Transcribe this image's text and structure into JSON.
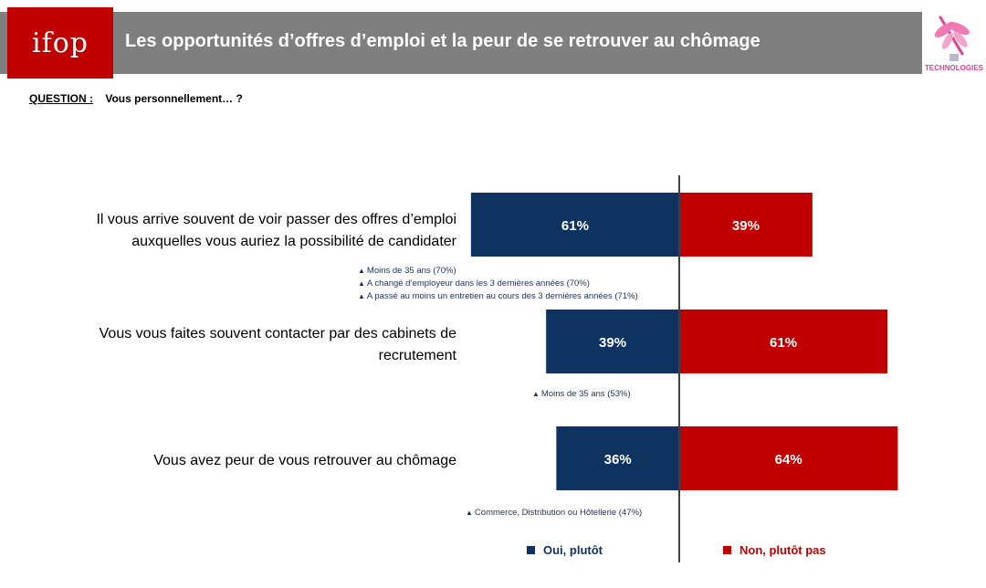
{
  "header": {
    "logo": "ifop",
    "title": "Les opportunités d’offres d’emploi et la peur de se retrouver au chômage",
    "partner_label": "TECHNOLOGIES"
  },
  "question": {
    "label": "QUESTION :",
    "text": "Vous personnellement… ?"
  },
  "colors": {
    "oui": "#0e3360",
    "non": "#c00000",
    "header": "#7f7f7f",
    "axis": "#404040"
  },
  "chart_data": {
    "type": "bar",
    "orientation": "horizontal-diverging",
    "categories": [
      "Il vous arrive souvent de voir passer des offres d’emploi auxquelles vous auriez la possibilité de candidater",
      "Vous vous faites souvent contacter par des cabinets de recrutement",
      "Vous avez peur de vous retrouver au chômage"
    ],
    "series": [
      {
        "name": "Oui, plutôt",
        "values": [
          61,
          39,
          36
        ],
        "labels": [
          "61%",
          "39%",
          "36%"
        ]
      },
      {
        "name": "Non, plutôt pas",
        "values": [
          39,
          61,
          64
        ],
        "labels": [
          "39%",
          "61%",
          "64%"
        ]
      }
    ],
    "legend_position": "bottom",
    "subgroup_notes": [
      [
        "Moins de 35 ans (70%)",
        "A changé d’employeur dans les 3 dernières années (70%)",
        "A passé au moins un entretien au cours des 3 dernières années (71%)"
      ],
      [
        "Moins de 35 ans (53%)"
      ],
      [
        "Commerce, Distribution ou Hôtellerie (47%)"
      ]
    ]
  }
}
